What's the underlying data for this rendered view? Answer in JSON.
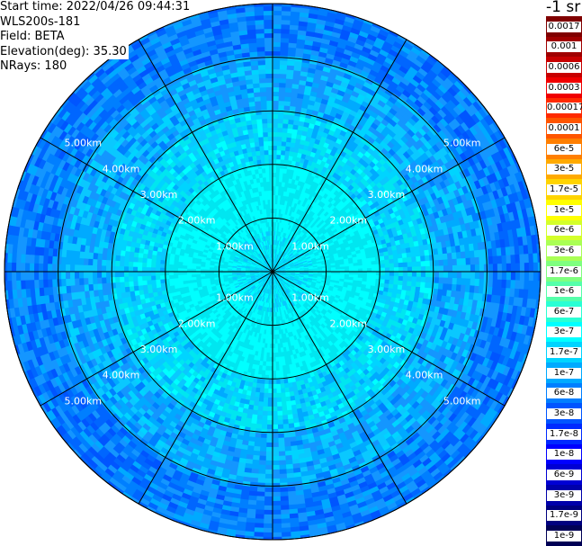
{
  "info": {
    "start_time": "Start time: 2022/04/26 09:44:31",
    "instrument": "WLS200s-181",
    "field": "Field: BETA",
    "elevation": "Elevation(deg): 35.30",
    "nrays": "NRays: 180"
  },
  "legend": {
    "unit": "-1 sr",
    "items": [
      {
        "label": "0.0017",
        "color": "#800000"
      },
      {
        "label": "0.001",
        "color": "#a00000"
      },
      {
        "label": "0.0006",
        "color": "#c80000"
      },
      {
        "label": "0.0003",
        "color": "#f00000"
      },
      {
        "label": "0.00017",
        "color": "#ff2a00"
      },
      {
        "label": "0.0001",
        "color": "#ff5500"
      },
      {
        "label": "6e-5",
        "color": "#ff7f00"
      },
      {
        "label": "3e-5",
        "color": "#ffaa00"
      },
      {
        "label": "1.7e-5",
        "color": "#ffd400"
      },
      {
        "label": "1e-5",
        "color": "#ffff00"
      },
      {
        "label": "6e-6",
        "color": "#d4ff2a"
      },
      {
        "label": "3e-6",
        "color": "#aaff55"
      },
      {
        "label": "1.7e-6",
        "color": "#7fff7f"
      },
      {
        "label": "1e-6",
        "color": "#55ffaa"
      },
      {
        "label": "6e-7",
        "color": "#2affd4"
      },
      {
        "label": "3e-7",
        "color": "#00ffff"
      },
      {
        "label": "1.7e-7",
        "color": "#00d4ff"
      },
      {
        "label": "1e-7",
        "color": "#00aaff"
      },
      {
        "label": "6e-8",
        "color": "#007fff"
      },
      {
        "label": "3e-8",
        "color": "#0055ff"
      },
      {
        "label": "1.7e-8",
        "color": "#002aff"
      },
      {
        "label": "1e-8",
        "color": "#0000ff"
      },
      {
        "label": "6e-9",
        "color": "#0000d4"
      },
      {
        "label": "3e-9",
        "color": "#0000aa"
      },
      {
        "label": "1.7e-9",
        "color": "#00007f"
      },
      {
        "label": "1e-9",
        "color": "#000055"
      }
    ]
  },
  "range_labels": [
    "1.00km",
    "2.00km",
    "3.00km",
    "4.00km",
    "5.00km"
  ]
}
